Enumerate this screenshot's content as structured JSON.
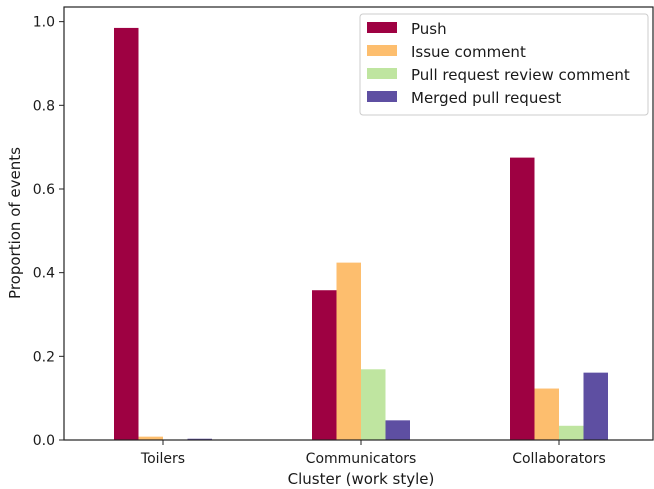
{
  "chart_data": {
    "type": "bar",
    "xlabel": "Cluster (work style)",
    "ylabel": "Proportion of events",
    "ylim": [
      0,
      1.035
    ],
    "yticks": [
      "0.0",
      "0.2",
      "0.4",
      "0.6",
      "0.8",
      "1.0"
    ],
    "categories": [
      "Toilers",
      "Communicators",
      "Collaborators"
    ],
    "series": [
      {
        "name": "Push",
        "color": "#9e0142",
        "values": [
          0.985,
          0.358,
          0.675
        ]
      },
      {
        "name": "Issue comment",
        "color": "#fdbe6e",
        "values": [
          0.008,
          0.424,
          0.123
        ]
      },
      {
        "name": "Pull request review comment",
        "color": "#bfe5a0",
        "values": [
          0.001,
          0.169,
          0.034
        ]
      },
      {
        "name": "Merged pull request",
        "color": "#5e4fa2",
        "values": [
          0.003,
          0.047,
          0.161
        ]
      }
    ],
    "legend_position": "top-right",
    "grid": false
  }
}
